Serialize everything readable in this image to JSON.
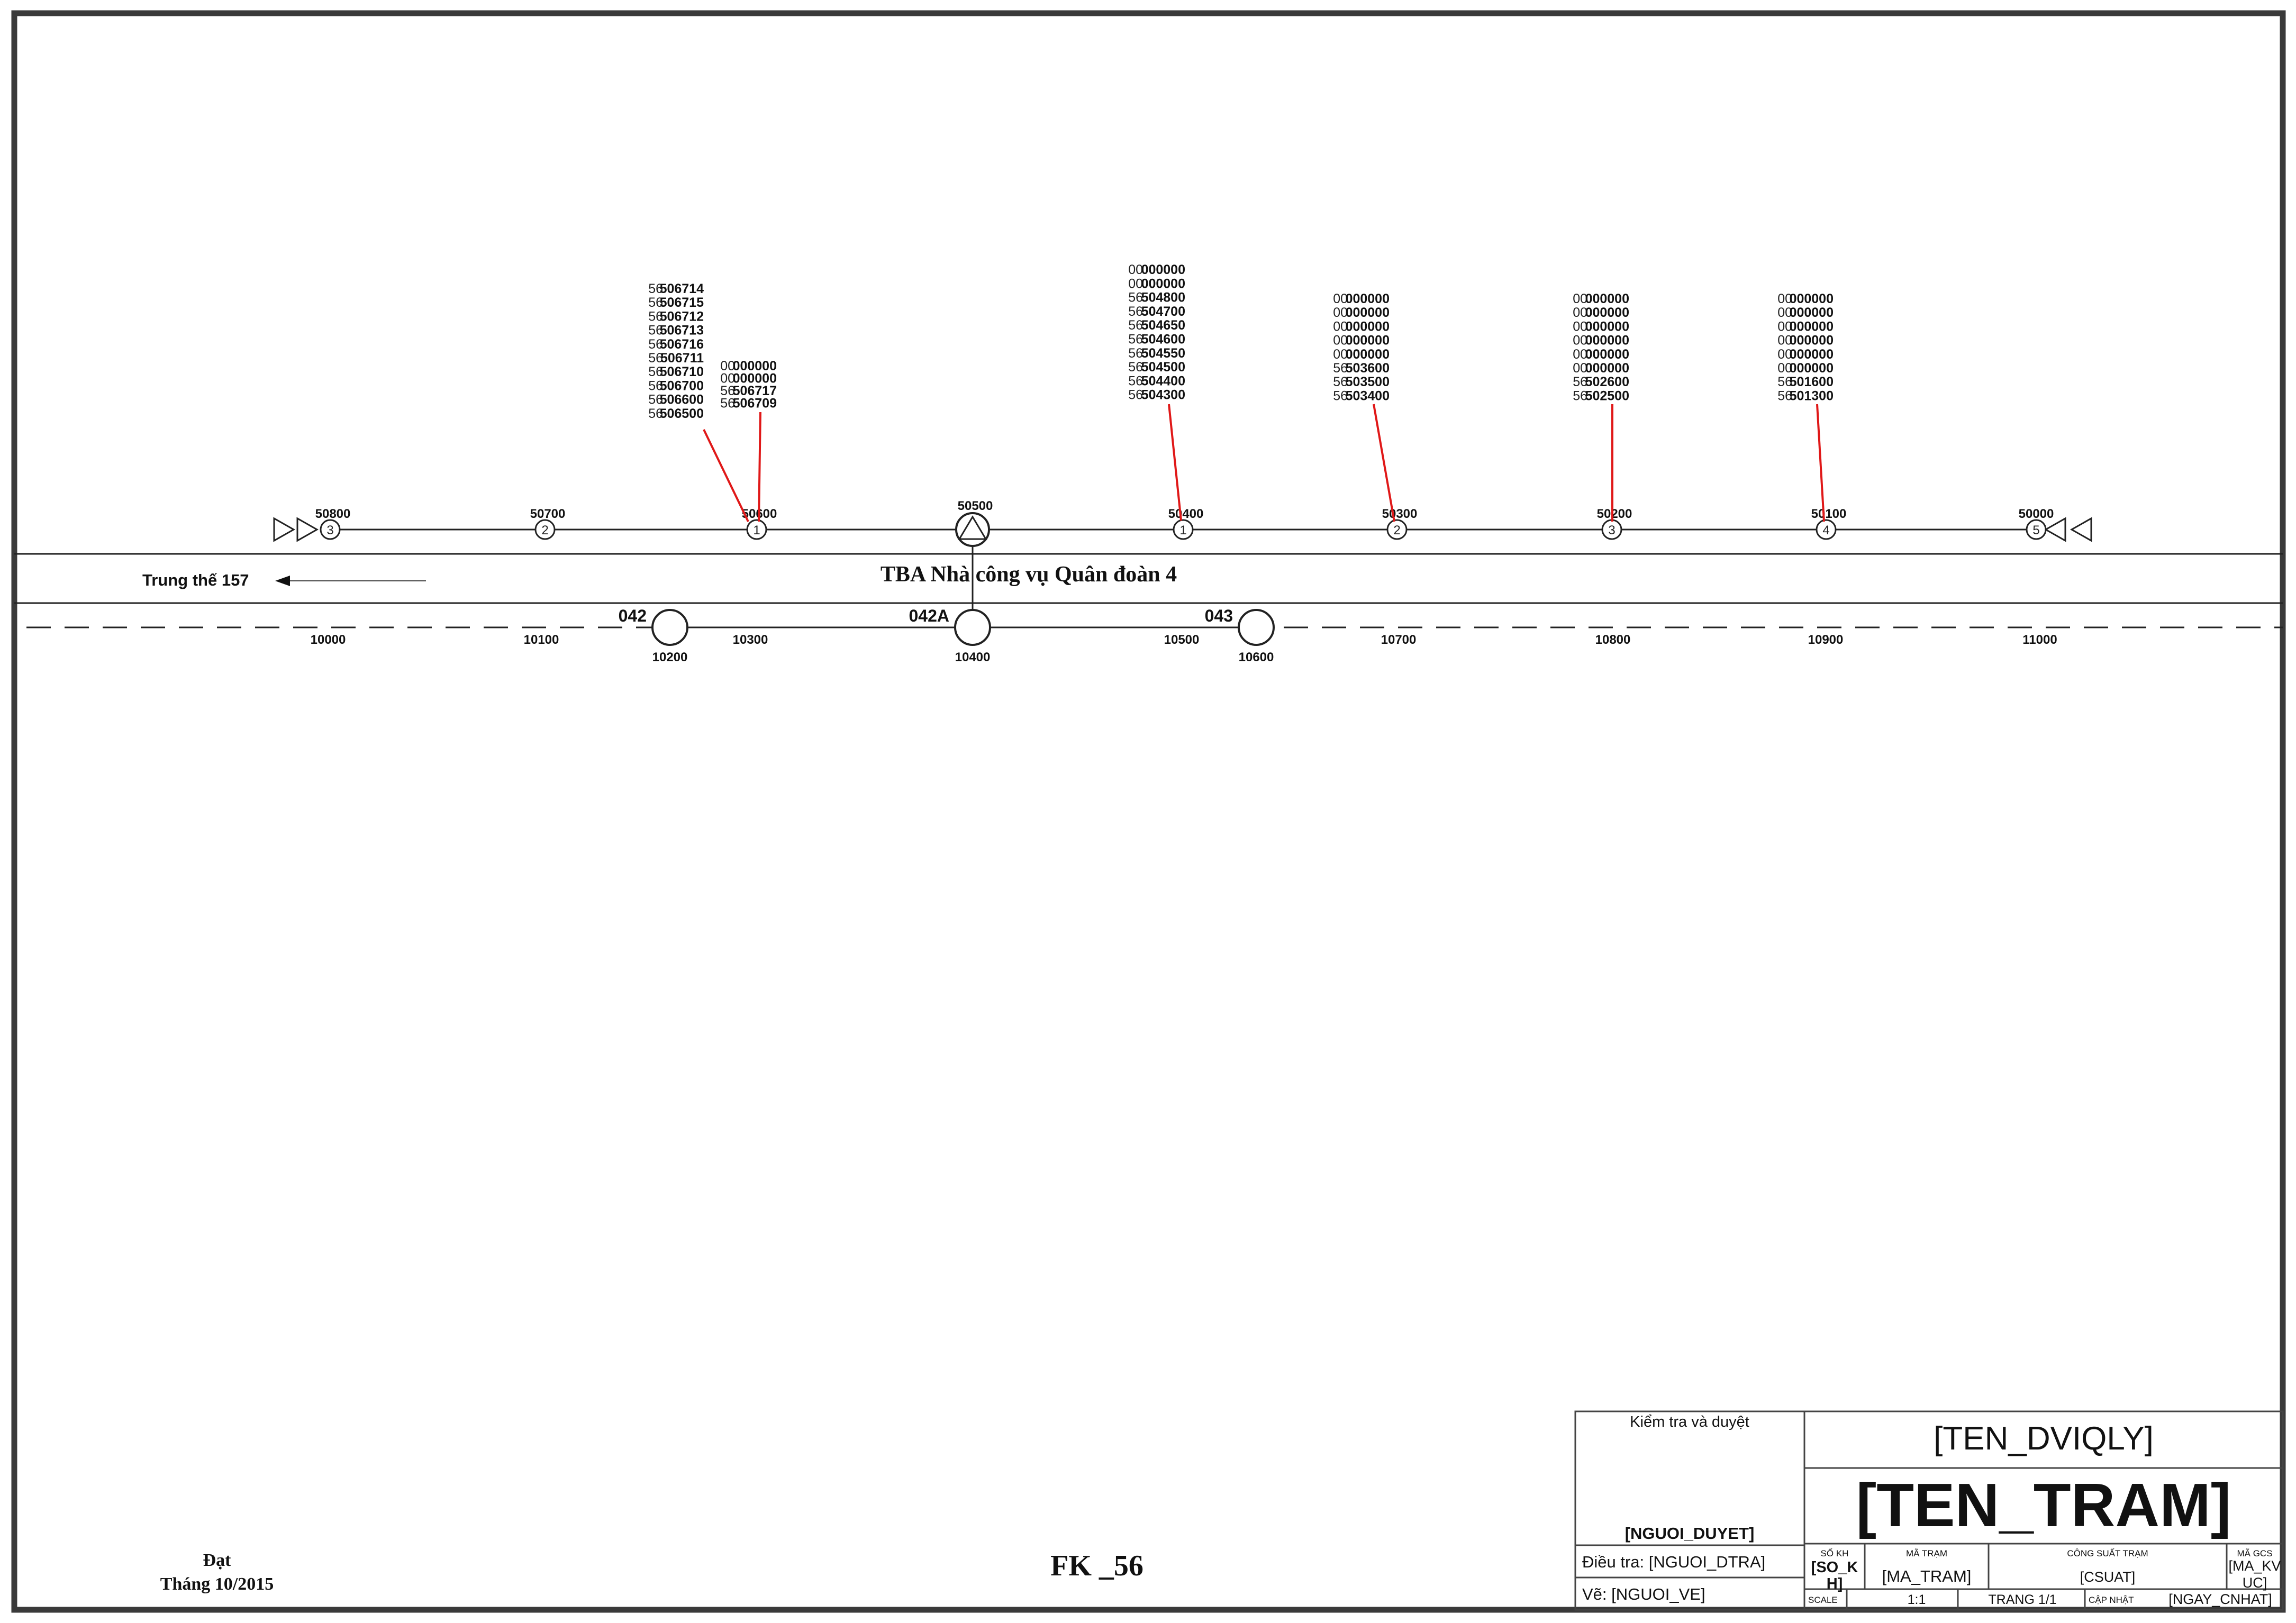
{
  "station_title": "TBA Nhà công vụ Quân đoàn 4",
  "direction_label": "Trung thế 157",
  "upper_nodes": [
    {
      "id": "50800",
      "num": "3"
    },
    {
      "id": "50700",
      "num": "2"
    },
    {
      "id": "50600",
      "num": "1"
    },
    {
      "id": "50500",
      "num": ""
    },
    {
      "id": "50400",
      "num": "1"
    },
    {
      "id": "50300",
      "num": "2"
    },
    {
      "id": "50200",
      "num": "3"
    },
    {
      "id": "50100",
      "num": "4"
    },
    {
      "id": "50000",
      "num": "5"
    }
  ],
  "lower_dash_labels": [
    "10000",
    "10100",
    "10300",
    "10500",
    "10700",
    "10800",
    "10900",
    "11000"
  ],
  "poles": [
    {
      "code": "042",
      "id": "10200"
    },
    {
      "code": "042A",
      "id": "10400"
    },
    {
      "code": "043",
      "id": "10600"
    }
  ],
  "customer_groups": [
    {
      "lines": [
        [
          "56",
          "506714"
        ],
        [
          "56",
          "506715"
        ],
        [
          "56",
          "506712"
        ],
        [
          "56",
          "506713"
        ],
        [
          "56",
          "506716"
        ],
        [
          "56",
          "506711"
        ],
        [
          "56",
          "506710"
        ],
        [
          "56",
          "506700"
        ],
        [
          "56",
          "506600"
        ],
        [
          "56",
          "506500"
        ]
      ]
    },
    {
      "lines": [
        [
          "00",
          "000000"
        ],
        [
          "00",
          "000000"
        ],
        [
          "56",
          "506717"
        ],
        [
          "56",
          "506709"
        ]
      ]
    },
    {
      "lines": [
        [
          "00",
          "000000"
        ],
        [
          "00",
          "000000"
        ],
        [
          "56",
          "504800"
        ],
        [
          "56",
          "504700"
        ],
        [
          "56",
          "504650"
        ],
        [
          "56",
          "504600"
        ],
        [
          "56",
          "504550"
        ],
        [
          "56",
          "504500"
        ],
        [
          "56",
          "504400"
        ],
        [
          "56",
          "504300"
        ]
      ]
    },
    {
      "lines": [
        [
          "00",
          "000000"
        ],
        [
          "00",
          "000000"
        ],
        [
          "00",
          "000000"
        ],
        [
          "00",
          "000000"
        ],
        [
          "00",
          "000000"
        ],
        [
          "56",
          "503600"
        ],
        [
          "56",
          "503500"
        ],
        [
          "56",
          "503400"
        ]
      ]
    },
    {
      "lines": [
        [
          "00",
          "000000"
        ],
        [
          "00",
          "000000"
        ],
        [
          "00",
          "000000"
        ],
        [
          "00",
          "000000"
        ],
        [
          "00",
          "000000"
        ],
        [
          "00",
          "000000"
        ],
        [
          "56",
          "502600"
        ],
        [
          "56",
          "502500"
        ]
      ]
    },
    {
      "lines": [
        [
          "00",
          "000000"
        ],
        [
          "00",
          "000000"
        ],
        [
          "00",
          "000000"
        ],
        [
          "00",
          "000000"
        ],
        [
          "00",
          "000000"
        ],
        [
          "00",
          "000000"
        ],
        [
          "56",
          "501600"
        ],
        [
          "56",
          "501300"
        ]
      ]
    }
  ],
  "footer": {
    "status_line1": "Đạt",
    "status_line2": "Tháng 10/2015",
    "drawing_code": "FK _56"
  },
  "title_block": {
    "review_label": "Kiểm tra và duyệt",
    "reviewer": "[NGUOI_DUYET]",
    "survey": "Điều tra: [NGUOI_DTRA]",
    "drawn_by": "Vẽ: [NGUOI_VE]",
    "unit_name": "[TEN_DVIQLY]",
    "station_name": "[TEN_TRAM]",
    "so_kh_label": "SỐ KH",
    "so_kh_value1": "[SO_K",
    "so_kh_value2": "H]",
    "ma_tram_label": "MÃ TRẠM",
    "ma_tram_value": "[MA_TRAM]",
    "cong_suat_label": "CÔNG SUẤT TRẠM",
    "cong_suat_value": "[CSUAT]",
    "ma_gcs_label": "MÃ GCS",
    "ma_gcs_value1": "[MA_KV",
    "ma_gcs_value2": "UC]",
    "scale_label": "SCALE",
    "scale_value": "1:1",
    "page_value": "TRANG 1/1",
    "update_label": "CẬP NHẬT",
    "update_value": "[NGAY_CNHAT]"
  }
}
